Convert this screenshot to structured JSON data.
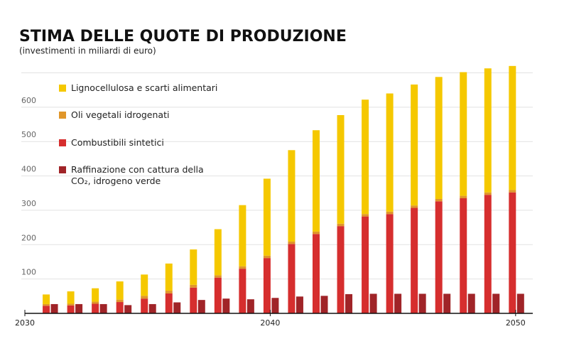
{
  "chart_data": {
    "type": "bar",
    "title": "STIMA DELLE QUOTE DI PRODUZIONE",
    "subtitle": "(investimenti in miliardi di euro)",
    "x": [
      2031,
      2032,
      2033,
      2034,
      2035,
      2036,
      2037,
      2038,
      2039,
      2040,
      2041,
      2042,
      2043,
      2044,
      2045,
      2046,
      2047,
      2048,
      2049,
      2050
    ],
    "series": [
      {
        "name": "Lignocellulosa  e scarti alimentari",
        "color": "#f5c800",
        "stack": "a",
        "values": [
          28,
          36,
          39,
          53,
          62,
          79,
          103,
          134,
          178,
          224,
          266,
          295,
          316,
          333,
          344,
          352,
          355,
          360,
          361,
          361
        ]
      },
      {
        "name": "Oli vegetali idrogenati",
        "color": "#e0962a",
        "stack": "a",
        "values": [
          5,
          5,
          6,
          7,
          8,
          8,
          8,
          7,
          7,
          7,
          7,
          7,
          7,
          7,
          7,
          7,
          7,
          7,
          7,
          7
        ]
      },
      {
        "name": "Combustibili sintetici",
        "color": "#d62e2e",
        "stack": "a",
        "values": [
          22,
          23,
          28,
          33,
          43,
          58,
          75,
          104,
          130,
          161,
          202,
          231,
          254,
          282,
          289,
          307,
          326,
          335,
          345,
          352
        ]
      },
      {
        "name": "Raffinazione con cattura della CO₂, idrogeno verde",
        "color": "#a02428",
        "stack": "b",
        "values": [
          27,
          27,
          27,
          24,
          27,
          32,
          39,
          43,
          41,
          45,
          49,
          51,
          56,
          57,
          57,
          57,
          57,
          57,
          57,
          57
        ]
      }
    ],
    "xlim": [
      2030,
      2050.7
    ],
    "xticks": [
      2030,
      2040,
      2050
    ],
    "ylim": [
      0,
      730
    ],
    "yticks": [
      100,
      200,
      300,
      400,
      500,
      600
    ],
    "gridlines": [
      100,
      200,
      300,
      400,
      500,
      600,
      700
    ],
    "grid": true
  }
}
